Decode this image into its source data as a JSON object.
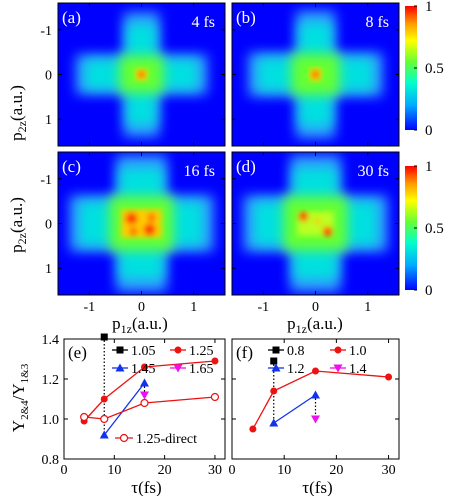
{
  "chart_data": [
    {
      "type": "heatmap",
      "panels": [
        {
          "label": "(a)",
          "time": "4 fs",
          "intensity_peak": 1.0,
          "spread": 0.55
        },
        {
          "label": "(b)",
          "time": "8 fs",
          "intensity_peak": 1.0,
          "spread": 0.65
        },
        {
          "label": "(c)",
          "time": "16 fs",
          "intensity_peak": 1.0,
          "spread": 1.0
        },
        {
          "label": "(d)",
          "time": "30 fs",
          "intensity_peak": 1.0,
          "spread": 1.0
        }
      ],
      "xlabel_main": "p",
      "xlabel_sub": "1z",
      "xlabel_unit": "(a.u.)",
      "ylabel_main": "p",
      "ylabel_sub": "2z",
      "ylabel_unit": "(a.u.)",
      "xlim": [
        -1.6,
        1.6
      ],
      "ylim": [
        -1.6,
        1.6
      ],
      "xticks": [
        "-1",
        "0",
        "1"
      ],
      "yticks": [
        "-1",
        "0",
        "1"
      ],
      "colorbar_ticks": [
        "1",
        "0.5",
        "0"
      ],
      "colormap": [
        "#0000ff",
        "#00aaff",
        "#00ffcc",
        "#66ff33",
        "#ffff00",
        "#ff9900",
        "#ff0000"
      ]
    },
    {
      "type": "line",
      "panel_label": "(e)",
      "ylabel_main": "Y",
      "ylabel_sub_num": "2&4",
      "ylabel_sep": "/Y",
      "ylabel_sub_den": "1&3",
      "xlabel": "τ(fs)",
      "xlim": [
        0,
        32
      ],
      "ylim": [
        0.8,
        1.4
      ],
      "xticks": [
        0,
        10,
        20,
        30
      ],
      "yticks": [
        "0.8",
        "1.0",
        "1.2",
        "1.4"
      ],
      "series": [
        {
          "name": "1.05",
          "color": "#000000",
          "marker": "square",
          "x": [
            8
          ],
          "y": [
            1.41
          ]
        },
        {
          "name": "1.25",
          "color": "#ee1111",
          "marker": "circle",
          "x": [
            4,
            8,
            16,
            30
          ],
          "y": [
            0.99,
            1.1,
            1.26,
            1.29
          ]
        },
        {
          "name": "1.45",
          "color": "#1133ee",
          "marker": "triangle",
          "x": [
            8,
            16
          ],
          "y": [
            0.92,
            1.18
          ]
        },
        {
          "name": "1.65",
          "color": "#ee11ee",
          "marker": "triangle-down",
          "x": [
            16
          ],
          "y": [
            1.12
          ]
        },
        {
          "name": "1.25-direct",
          "color": "#ee1111",
          "marker": "open-circle",
          "x": [
            4,
            8,
            16,
            30
          ],
          "y": [
            1.01,
            1.0,
            1.08,
            1.11
          ]
        }
      ]
    },
    {
      "type": "line",
      "panel_label": "(f)",
      "xlabel": "τ(fs)",
      "xlim": [
        0,
        32
      ],
      "ylim": [
        0.8,
        1.4
      ],
      "xticks": [
        0,
        10,
        20,
        30
      ],
      "series": [
        {
          "name": "0.8",
          "color": "#000000",
          "marker": "square",
          "x": [
            8
          ],
          "y": [
            1.29
          ]
        },
        {
          "name": "1.0",
          "color": "#ee1111",
          "marker": "circle",
          "x": [
            4,
            8,
            16,
            30
          ],
          "y": [
            0.95,
            1.14,
            1.24,
            1.21
          ]
        },
        {
          "name": "1.2",
          "color": "#1133ee",
          "marker": "triangle",
          "x": [
            8,
            16
          ],
          "y": [
            0.98,
            1.12
          ]
        },
        {
          "name": "1.4",
          "color": "#ee11ee",
          "marker": "triangle-down",
          "x": [
            16
          ],
          "y": [
            1.0
          ]
        }
      ]
    }
  ]
}
